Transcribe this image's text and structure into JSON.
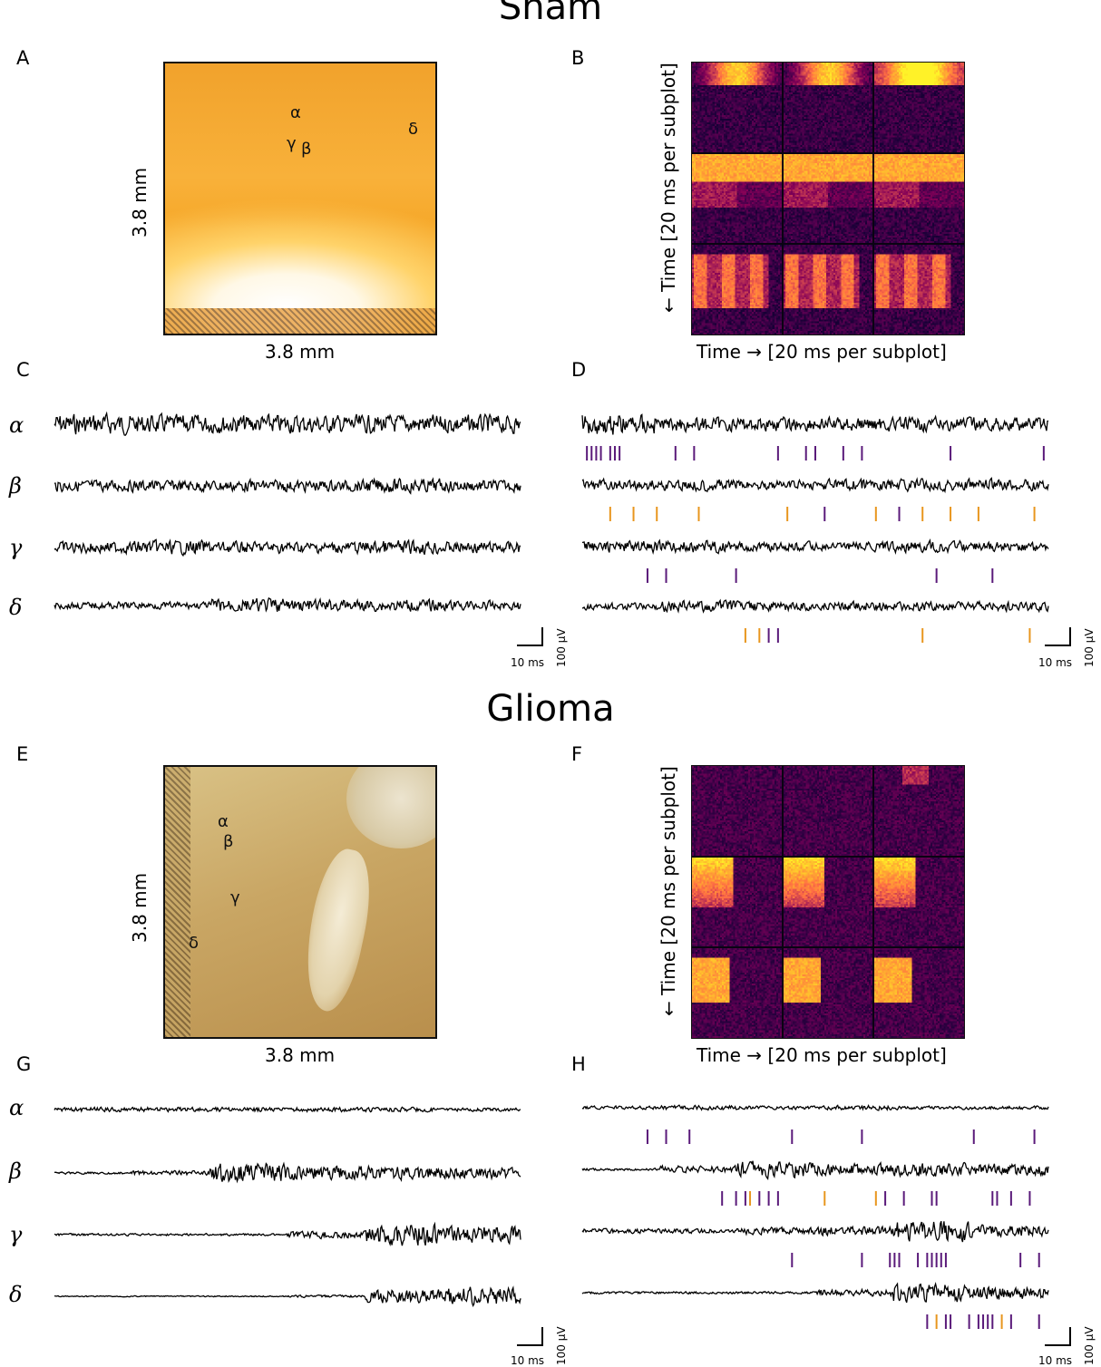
{
  "sections": {
    "sham": "Sham",
    "glioma": "Glioma"
  },
  "panels": {
    "a": "A",
    "b": "B",
    "c": "C",
    "d": "D",
    "e": "E",
    "f": "F",
    "g": "G",
    "h": "H"
  },
  "photo": {
    "width_label": "3.8 mm",
    "height_label": "3.8 mm"
  },
  "sham_photo_labels": {
    "alpha": "α",
    "beta": "β",
    "gamma": "γ",
    "delta": "δ"
  },
  "glioma_photo_labels": {
    "alpha": "α",
    "beta": "β",
    "gamma": "γ",
    "delta": "δ"
  },
  "heatmap": {
    "x_label": "Time → [20 ms per subplot]",
    "y_label": "← Time [20 ms per subplot]",
    "colormap": "inferno"
  },
  "channels": {
    "alpha": "α",
    "beta": "β",
    "gamma": "γ",
    "delta": "δ"
  },
  "scalebar": {
    "time": "10 ms",
    "voltage": "100 µV"
  },
  "colors": {
    "trace": "#000000",
    "spike_purple": "#5a1a7a",
    "spike_orange": "#e8961e"
  },
  "chart_data": {
    "type": "line",
    "series": [
      {
        "panel": "C",
        "channel": "α",
        "activity": [
          0.9,
          0.8,
          0.8,
          0.8,
          0.8,
          0.8
        ]
      },
      {
        "panel": "C",
        "channel": "β",
        "activity": [
          0.5,
          0.5,
          0.5,
          0.5,
          0.6,
          0.5
        ]
      },
      {
        "panel": "C",
        "channel": "γ",
        "activity": [
          0.5,
          0.6,
          0.5,
          0.5,
          0.6,
          0.5
        ]
      },
      {
        "panel": "C",
        "channel": "δ",
        "activity": [
          0.3,
          0.3,
          0.6,
          0.5,
          0.5,
          0.4
        ]
      },
      {
        "panel": "D",
        "channel": "α",
        "activity": [
          0.9,
          0.6,
          0.6,
          0.6,
          0.6,
          0.6
        ],
        "spikes": [
          {
            "t": 0.01,
            "c": "p"
          },
          {
            "t": 0.02,
            "c": "p"
          },
          {
            "t": 0.03,
            "c": "p"
          },
          {
            "t": 0.04,
            "c": "p"
          },
          {
            "t": 0.06,
            "c": "p"
          },
          {
            "t": 0.07,
            "c": "p"
          },
          {
            "t": 0.08,
            "c": "p"
          },
          {
            "t": 0.2,
            "c": "p"
          },
          {
            "t": 0.24,
            "c": "p"
          },
          {
            "t": 0.42,
            "c": "p"
          },
          {
            "t": 0.48,
            "c": "p"
          },
          {
            "t": 0.5,
            "c": "p"
          },
          {
            "t": 0.56,
            "c": "p"
          },
          {
            "t": 0.6,
            "c": "p"
          },
          {
            "t": 0.79,
            "c": "p"
          },
          {
            "t": 0.99,
            "c": "p"
          }
        ]
      },
      {
        "panel": "D",
        "channel": "β",
        "activity": [
          0.5,
          0.5,
          0.4,
          0.5,
          0.5,
          0.5
        ],
        "spikes": [
          {
            "t": 0.06,
            "c": "o"
          },
          {
            "t": 0.11,
            "c": "o"
          },
          {
            "t": 0.16,
            "c": "o"
          },
          {
            "t": 0.25,
            "c": "o"
          },
          {
            "t": 0.44,
            "c": "o"
          },
          {
            "t": 0.52,
            "c": "p"
          },
          {
            "t": 0.63,
            "c": "o"
          },
          {
            "t": 0.68,
            "c": "p"
          },
          {
            "t": 0.73,
            "c": "o"
          },
          {
            "t": 0.79,
            "c": "o"
          },
          {
            "t": 0.85,
            "c": "o"
          },
          {
            "t": 0.97,
            "c": "o"
          }
        ]
      },
      {
        "panel": "D",
        "channel": "γ",
        "activity": [
          0.5,
          0.5,
          0.4,
          0.4,
          0.5,
          0.4
        ],
        "spikes": [
          {
            "t": 0.14,
            "c": "p"
          },
          {
            "t": 0.18,
            "c": "p"
          },
          {
            "t": 0.33,
            "c": "p"
          },
          {
            "t": 0.76,
            "c": "p"
          },
          {
            "t": 0.88,
            "c": "p"
          }
        ]
      },
      {
        "panel": "D",
        "channel": "δ",
        "activity": [
          0.3,
          0.5,
          0.4,
          0.4,
          0.4,
          0.4
        ],
        "spikes": [
          {
            "t": 0.35,
            "c": "o"
          },
          {
            "t": 0.38,
            "c": "o"
          },
          {
            "t": 0.4,
            "c": "p"
          },
          {
            "t": 0.42,
            "c": "p"
          },
          {
            "t": 0.73,
            "c": "o"
          },
          {
            "t": 0.96,
            "c": "o"
          }
        ]
      },
      {
        "panel": "G",
        "channel": "α",
        "activity": [
          0.2,
          0.2,
          0.2,
          0.2,
          0.2,
          0.15
        ]
      },
      {
        "panel": "G",
        "channel": "β",
        "activity": [
          0.1,
          0.2,
          0.8,
          0.6,
          0.6,
          0.5
        ]
      },
      {
        "panel": "G",
        "channel": "γ",
        "activity": [
          0.1,
          0.1,
          0.1,
          0.3,
          0.9,
          0.7
        ]
      },
      {
        "panel": "G",
        "channel": "δ",
        "activity": [
          0.05,
          0.05,
          0.05,
          0.1,
          0.6,
          0.8
        ]
      },
      {
        "panel": "H",
        "channel": "α",
        "activity": [
          0.15,
          0.2,
          0.15,
          0.2,
          0.15,
          0.15
        ],
        "spikes": [
          {
            "t": 0.14,
            "c": "p"
          },
          {
            "t": 0.18,
            "c": "p"
          },
          {
            "t": 0.23,
            "c": "p"
          },
          {
            "t": 0.45,
            "c": "p"
          },
          {
            "t": 0.6,
            "c": "p"
          },
          {
            "t": 0.84,
            "c": "p"
          },
          {
            "t": 0.97,
            "c": "p"
          }
        ]
      },
      {
        "panel": "H",
        "channel": "β",
        "activity": [
          0.1,
          0.3,
          0.7,
          0.5,
          0.6,
          0.5
        ],
        "spikes": [
          {
            "t": 0.3,
            "c": "p"
          },
          {
            "t": 0.33,
            "c": "p"
          },
          {
            "t": 0.35,
            "c": "p"
          },
          {
            "t": 0.36,
            "c": "o"
          },
          {
            "t": 0.38,
            "c": "p"
          },
          {
            "t": 0.4,
            "c": "p"
          },
          {
            "t": 0.42,
            "c": "p"
          },
          {
            "t": 0.52,
            "c": "o"
          },
          {
            "t": 0.63,
            "c": "o"
          },
          {
            "t": 0.65,
            "c": "p"
          },
          {
            "t": 0.69,
            "c": "p"
          },
          {
            "t": 0.75,
            "c": "p"
          },
          {
            "t": 0.76,
            "c": "p"
          },
          {
            "t": 0.88,
            "c": "p"
          },
          {
            "t": 0.89,
            "c": "p"
          },
          {
            "t": 0.92,
            "c": "p"
          },
          {
            "t": 0.96,
            "c": "p"
          }
        ]
      },
      {
        "panel": "H",
        "channel": "γ",
        "activity": [
          0.2,
          0.2,
          0.3,
          0.4,
          0.9,
          0.5
        ],
        "spikes": [
          {
            "t": 0.45,
            "c": "p"
          },
          {
            "t": 0.6,
            "c": "p"
          },
          {
            "t": 0.66,
            "c": "p"
          },
          {
            "t": 0.67,
            "c": "p"
          },
          {
            "t": 0.68,
            "c": "p"
          },
          {
            "t": 0.72,
            "c": "p"
          },
          {
            "t": 0.74,
            "c": "p"
          },
          {
            "t": 0.75,
            "c": "p"
          },
          {
            "t": 0.76,
            "c": "p"
          },
          {
            "t": 0.77,
            "c": "p"
          },
          {
            "t": 0.78,
            "c": "p"
          },
          {
            "t": 0.94,
            "c": "p"
          },
          {
            "t": 0.98,
            "c": "p"
          }
        ]
      },
      {
        "panel": "H",
        "channel": "δ",
        "activity": [
          0.1,
          0.1,
          0.1,
          0.3,
          0.8,
          0.6
        ],
        "spikes": [
          {
            "t": 0.74,
            "c": "p"
          },
          {
            "t": 0.76,
            "c": "o"
          },
          {
            "t": 0.78,
            "c": "p"
          },
          {
            "t": 0.79,
            "c": "p"
          },
          {
            "t": 0.83,
            "c": "p"
          },
          {
            "t": 0.85,
            "c": "p"
          },
          {
            "t": 0.86,
            "c": "p"
          },
          {
            "t": 0.87,
            "c": "p"
          },
          {
            "t": 0.88,
            "c": "p"
          },
          {
            "t": 0.9,
            "c": "o"
          },
          {
            "t": 0.92,
            "c": "p"
          },
          {
            "t": 0.98,
            "c": "p"
          }
        ]
      }
    ]
  }
}
